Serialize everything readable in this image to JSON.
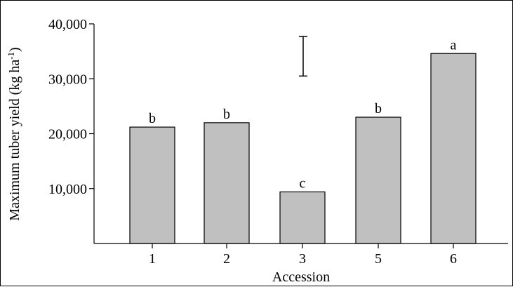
{
  "chart_data": {
    "type": "bar",
    "title": "",
    "xlabel": "Accession",
    "ylabel_main": "Maximum tuber yield (kg ha",
    "ylabel_sup": "-1",
    "ylabel_close": ")",
    "categories": [
      "1",
      "2",
      "3",
      "5",
      "6"
    ],
    "values": [
      21200,
      22000,
      9400,
      23000,
      34600
    ],
    "letters": [
      "b",
      "b",
      "c",
      "b",
      "a"
    ],
    "ylim": [
      0,
      40000
    ],
    "yticks": [
      10000,
      20000,
      30000,
      40000
    ],
    "ytick_labels": [
      "10,000",
      "20,000",
      "30,000",
      "40,000"
    ],
    "error_bar": {
      "low": 30500,
      "high": 37700
    },
    "bar_color": "#c0c0c0",
    "edge_color": "#000000",
    "grid": false
  }
}
